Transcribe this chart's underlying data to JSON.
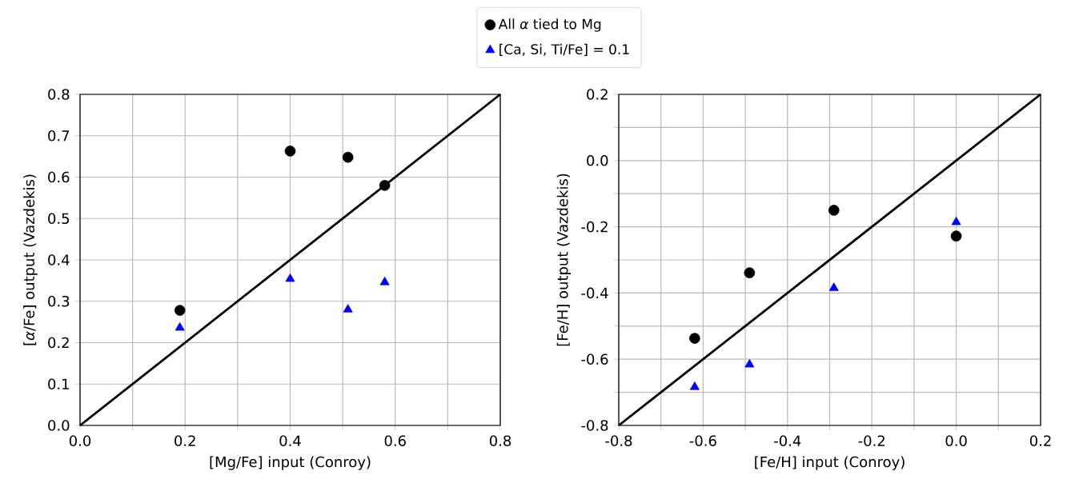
{
  "chart_data": [
    {
      "type": "scatter",
      "xlabel": "[Mg/Fe] input (Conroy)",
      "ylabel": "[*α*/Fe] output (Vazdekis)",
      "xlim": [
        0,
        0.8
      ],
      "ylim": [
        0,
        0.8
      ],
      "xticks": [
        {
          "value": 0,
          "label": "0.0"
        },
        {
          "value": 0.1,
          "label": null
        },
        0.2,
        {
          "value": 0.3,
          "label": null
        },
        0.4,
        {
          "value": 0.5,
          "label": null
        },
        0.6,
        {
          "value": 0.7,
          "label": null
        },
        0.8
      ],
      "yticks": [
        {
          "value": 0,
          "label": "0.0"
        },
        0.1,
        0.2,
        0.3,
        0.4,
        0.5,
        0.6,
        0.7,
        0.8
      ],
      "grid": true,
      "legend": "top",
      "series": [
        {
          "name": "All *α* tied to Mg",
          "color": "#000000",
          "marker": "circle",
          "x": [
            0.19,
            0.4,
            0.51,
            0.58
          ],
          "values": [
            0.278,
            0.663,
            0.648,
            0.58
          ]
        },
        {
          "name": "[Ca, Si, Ti/Fe] = 0.1",
          "color": "#0000ff",
          "marker": "triangle",
          "x": [
            0.19,
            0.4,
            0.51,
            0.58
          ],
          "values": [
            0.236,
            0.354,
            0.28,
            0.346
          ]
        },
        {
          "type": "line",
          "color": "#000000",
          "marker": "none",
          "x": [
            0,
            0.8
          ],
          "values": [
            0,
            0.8
          ]
        }
      ]
    },
    {
      "type": "scatter",
      "xlabel": "[Fe/H] input (Conroy)",
      "ylabel": "[Fe/H] output (Vazdekis)",
      "xlim": [
        -0.8,
        0.2
      ],
      "ylim": [
        -0.8,
        0.2
      ],
      "xticks": [
        -0.8,
        {
          "value": -0.7,
          "label": null
        },
        -0.6,
        {
          "value": -0.5,
          "label": null
        },
        -0.4,
        {
          "value": -0.3,
          "label": null
        },
        -0.2,
        {
          "value": -0.1,
          "label": null
        },
        {
          "value": 0,
          "label": "0.0"
        },
        {
          "value": 0.1,
          "label": null
        },
        0.2
      ],
      "yticks": [
        -0.8,
        {
          "value": -0.7,
          "label": null
        },
        -0.6,
        {
          "value": -0.5,
          "label": null
        },
        -0.4,
        {
          "value": -0.3,
          "label": null
        },
        -0.2,
        {
          "value": -0.1,
          "label": null
        },
        {
          "value": 0,
          "label": "0.0"
        },
        {
          "value": 0.1,
          "label": null
        },
        0.2
      ],
      "grid": true,
      "series": [
        {
          "color": "#000000",
          "marker": "circle",
          "x": [
            -0.62,
            -0.49,
            -0.29,
            0.0
          ],
          "values": [
            -0.537,
            -0.339,
            -0.15,
            -0.228
          ]
        },
        {
          "color": "#0000ff",
          "marker": "triangle",
          "x": [
            -0.62,
            -0.49,
            -0.29,
            0.0
          ],
          "values": [
            -0.684,
            -0.616,
            -0.385,
            -0.186
          ]
        },
        {
          "type": "line",
          "color": "#000000",
          "marker": "none",
          "x": [
            -0.8,
            0.2
          ],
          "values": [
            -0.8,
            0.2
          ]
        }
      ]
    }
  ]
}
